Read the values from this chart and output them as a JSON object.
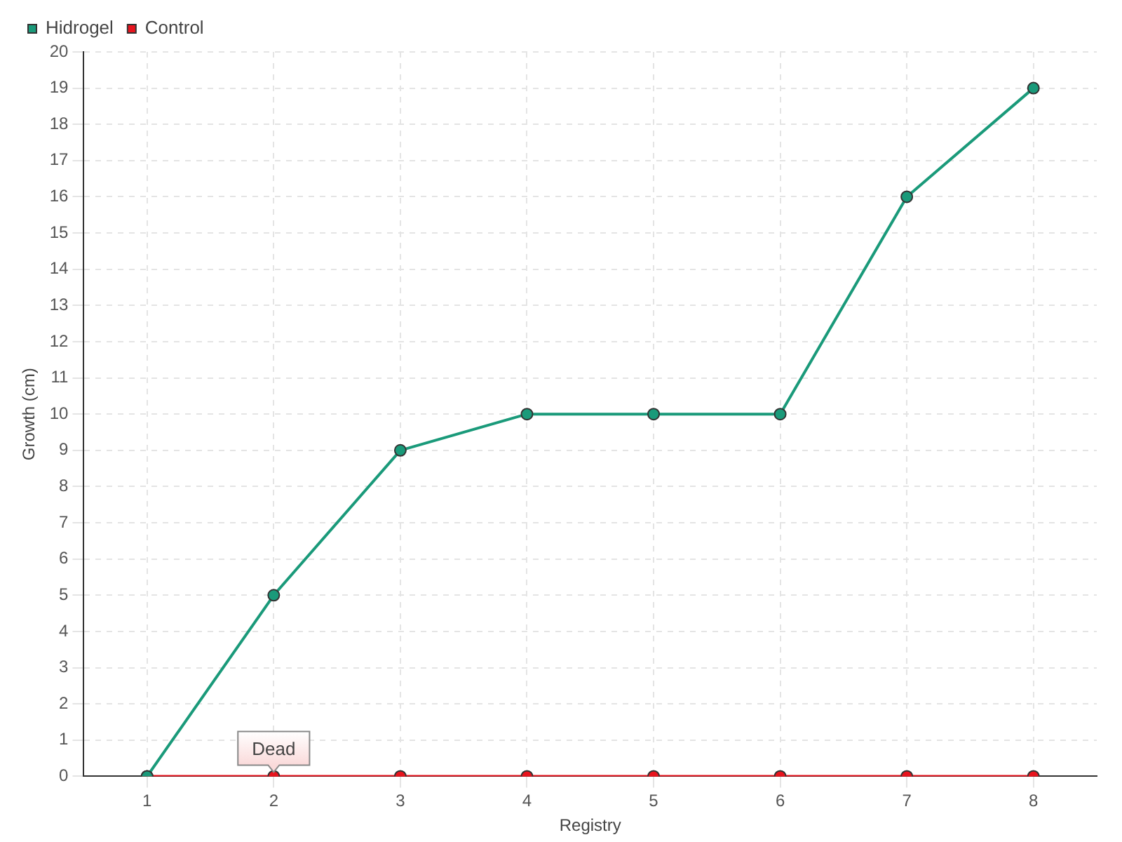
{
  "chart_data": {
    "type": "line",
    "xlabel": "Registry",
    "ylabel": "Growth (cm)",
    "categories": [
      "1",
      "2",
      "3",
      "4",
      "5",
      "6",
      "7",
      "8"
    ],
    "series": [
      {
        "name": "Hidrogel",
        "color": "#1a9a7a",
        "values": [
          0,
          5,
          9,
          10,
          10,
          10,
          16,
          19
        ]
      },
      {
        "name": "Control",
        "color": "#e8141e",
        "values": [
          0,
          0,
          0,
          0,
          0,
          0,
          0,
          0
        ]
      }
    ],
    "ylim": [
      0,
      20
    ],
    "yticks": [
      0,
      1,
      2,
      3,
      4,
      5,
      6,
      7,
      8,
      9,
      10,
      11,
      12,
      13,
      14,
      15,
      16,
      17,
      18,
      19,
      20
    ],
    "grid": true,
    "legend": "top left",
    "marker": "circle",
    "annotations": [
      {
        "text": "Dead",
        "x": "2",
        "y": 0
      }
    ]
  }
}
